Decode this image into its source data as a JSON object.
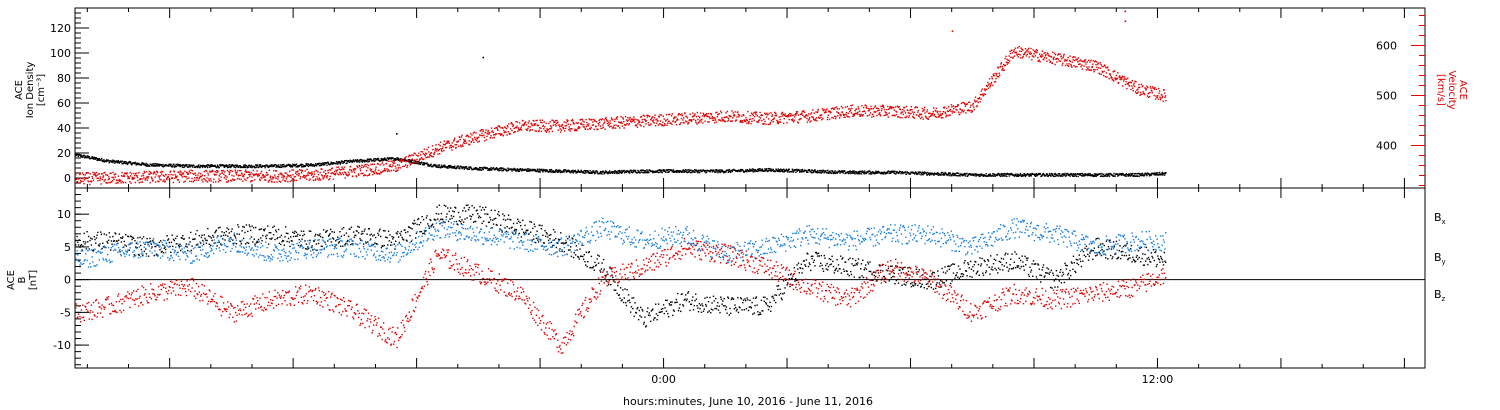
{
  "chart_data": [
    {
      "type": "scatter",
      "panel": "plasma",
      "left_axis": {
        "label_lines": [
          "ACE",
          "Ion Density",
          "[cm⁻³]"
        ],
        "ylim": [
          -8,
          136
        ],
        "tick_labels": [
          "0",
          "20",
          "40",
          "60",
          "80",
          "100",
          "120"
        ],
        "ticks": [
          0,
          20,
          40,
          60,
          80,
          100,
          120
        ],
        "color": "#000000"
      },
      "right_axis": {
        "label_lines": [
          "ACE",
          "Velocity",
          "[km/s]"
        ],
        "ylim": [
          315,
          675
        ],
        "tick_labels": [
          "400",
          "500",
          "600"
        ],
        "ticks": [
          400,
          500,
          600
        ],
        "color": "#e00000"
      },
      "series": [
        {
          "axis": "left",
          "color": "#000000",
          "x": [
            -14.3,
            -13.5,
            -12.5,
            -11.5,
            -10.5,
            -9.5,
            -8.5,
            -7.5,
            -6.5,
            -5.5,
            -4.5,
            -3.5,
            -2.5,
            -1.5,
            -0.5,
            0.5,
            1.5,
            2.5,
            3.5,
            4.5,
            5.5,
            6.5,
            7.5,
            8.5,
            9.5,
            10.5,
            11.5,
            12.2
          ],
          "y": [
            19,
            14,
            11,
            10,
            10,
            10,
            11,
            14,
            16,
            10,
            8,
            7,
            6,
            5,
            6,
            6,
            6,
            7,
            6,
            5,
            5,
            4,
            3,
            3,
            3,
            3,
            3,
            4
          ]
        },
        {
          "axis": "right",
          "color": "#e00000",
          "x": [
            -14.3,
            -13.5,
            -12.5,
            -11.5,
            -10.5,
            -9.5,
            -8.5,
            -7.5,
            -6.5,
            -5.5,
            -4.5,
            -3.5,
            -2.5,
            -1.5,
            -0.5,
            0.5,
            1.5,
            2.5,
            3.5,
            4.5,
            5.5,
            6.5,
            7.5,
            8.5,
            9.5,
            10.5,
            11.5,
            12.2
          ],
          "y": [
            335,
            336,
            338,
            340,
            340,
            340,
            342,
            350,
            360,
            395,
            420,
            440,
            440,
            445,
            450,
            455,
            460,
            455,
            460,
            470,
            470,
            465,
            480,
            590,
            575,
            560,
            515,
            500
          ]
        }
      ],
      "annotations": {
        "density_spikes": [
          {
            "x": -4.4,
            "y": 97
          },
          {
            "x": -6.5,
            "y": 36
          }
        ],
        "velocity_spikes": [
          {
            "x": 11.2,
            "y": 670
          },
          {
            "x": 11.2,
            "y": 650
          },
          {
            "x": 7.0,
            "y": 630
          }
        ]
      }
    },
    {
      "type": "scatter",
      "panel": "magnetic_field",
      "left_axis": {
        "label_lines": [
          "ACE",
          "B",
          "[nT]"
        ],
        "ylim": [
          -13.5,
          14
        ],
        "tick_labels": [
          "-10",
          "-5",
          "0",
          "5",
          "10"
        ],
        "ticks": [
          -10,
          -5,
          0,
          5,
          10
        ]
      },
      "zero_line": true,
      "series": [
        {
          "name": "B",
          "subscript": "x",
          "color": "#000000",
          "x": [
            -14.3,
            -13.5,
            -12.5,
            -11.5,
            -10.5,
            -9.5,
            -8.5,
            -7.5,
            -6.5,
            -5.5,
            -4.5,
            -3.5,
            -2.5,
            -1.5,
            -0.5,
            0.5,
            1.5,
            2.5,
            3.5,
            4.5,
            5.5,
            6.5,
            7.5,
            8.5,
            9.5,
            10.5,
            11.5,
            12.2
          ],
          "y": [
            6,
            6,
            5,
            6,
            7,
            7,
            6,
            7,
            6,
            10,
            10,
            8,
            6,
            2,
            -6,
            -3,
            -4,
            -4,
            3,
            2,
            1,
            0,
            2,
            3,
            0,
            5,
            4,
            3
          ]
        },
        {
          "name": "B",
          "subscript": "y",
          "color": "#1a7fdc",
          "x": [
            -14.3,
            -13.5,
            -12.5,
            -11.5,
            -10.5,
            -9.5,
            -8.5,
            -7.5,
            -6.5,
            -5.5,
            -4.5,
            -3.5,
            -2.5,
            -1.5,
            -0.5,
            0.5,
            1.5,
            2.5,
            3.5,
            4.5,
            5.5,
            6.5,
            7.5,
            8.5,
            9.5,
            10.5,
            11.5,
            12.2
          ],
          "y": [
            3,
            4,
            5,
            4,
            6,
            4,
            5,
            5,
            4,
            8,
            7,
            6,
            5,
            8,
            6,
            7,
            4,
            5,
            7,
            6,
            7,
            7,
            5,
            8,
            7,
            5,
            6,
            6
          ]
        },
        {
          "name": "B",
          "subscript": "z",
          "color": "#e00000",
          "x": [
            -14.3,
            -13.5,
            -12.5,
            -11.5,
            -10.5,
            -9.5,
            -8.5,
            -7.5,
            -6.5,
            -5.5,
            -4.5,
            -3.5,
            -2.5,
            -1.5,
            -0.5,
            0.5,
            1.5,
            2.5,
            3.5,
            4.5,
            5.5,
            6.5,
            7.5,
            8.5,
            9.5,
            10.5,
            11.5,
            12.2
          ],
          "y": [
            -5,
            -4,
            -2,
            -1,
            -5,
            -3,
            -2,
            -5,
            -9,
            4,
            1,
            -2,
            -10,
            0,
            2,
            5,
            4,
            2,
            -1,
            -3,
            2,
            0,
            -5,
            -2,
            -3,
            -2,
            -1,
            1
          ]
        }
      ]
    }
  ],
  "x_axis": {
    "title": "hours:minutes, June 10, 2016 - June 11, 2016",
    "xlim": [
      -14.3,
      18.5
    ],
    "tick_labels": [
      "0:00",
      "12:00"
    ],
    "ticks": [
      0,
      12
    ]
  }
}
